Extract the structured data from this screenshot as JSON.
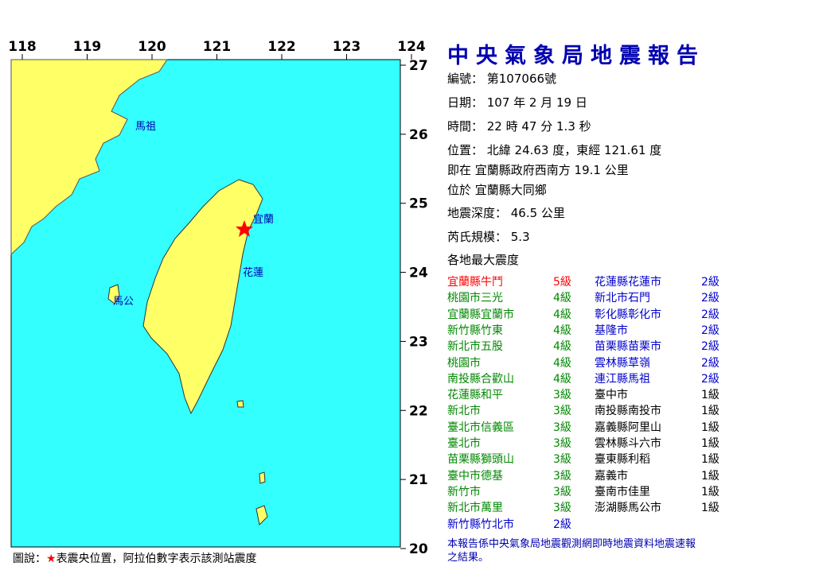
{
  "map": {
    "lon_ticks": [
      118,
      119,
      120,
      121,
      122,
      123,
      124
    ],
    "lat_ticks": [
      27,
      26,
      25,
      24,
      23,
      22,
      21,
      20
    ],
    "places": [
      "馬祖",
      "宜蘭",
      "花蓮",
      "馬公"
    ]
  },
  "report": {
    "title": "中央氣象局地震報告",
    "fields": [
      "編號： 第107066號",
      "日期： 107 年 2 月 19 日",
      "時間： 22 時 47 分 1.3 秒",
      "位置： 北緯 24.63 度，東經 121.61 度",
      "即在 宜蘭縣政府西南方 19.1 公里",
      "位於 宜蘭縣大同鄉",
      "地震深度： 46.5 公里",
      "芮氏規模： 5.3",
      "各地最大震度"
    ],
    "columns": [
      [
        {
          "name": "宜蘭縣牛鬥",
          "level": "5級",
          "color": "#ff0000"
        },
        {
          "name": "桃園市三光",
          "level": "4級",
          "color": "#008800"
        },
        {
          "name": "宜蘭縣宜蘭市",
          "level": "4級",
          "color": "#008800"
        },
        {
          "name": "新竹縣竹東",
          "level": "4級",
          "color": "#008800"
        },
        {
          "name": "新北市五股",
          "level": "4級",
          "color": "#008800"
        },
        {
          "name": "桃園市",
          "level": "4級",
          "color": "#008800"
        },
        {
          "name": "南投縣合歡山",
          "level": "4級",
          "color": "#008800"
        },
        {
          "name": "花蓮縣和平",
          "level": "3級",
          "color": "#008800"
        },
        {
          "name": "新北市",
          "level": "3級",
          "color": "#008800"
        },
        {
          "name": "臺北市信義區",
          "level": "3級",
          "color": "#008800"
        },
        {
          "name": "臺北市",
          "level": "3級",
          "color": "#008800"
        },
        {
          "name": "苗栗縣獅頭山",
          "level": "3級",
          "color": "#008800"
        },
        {
          "name": "臺中市德基",
          "level": "3級",
          "color": "#008800"
        },
        {
          "name": "新竹市",
          "level": "3級",
          "color": "#008800"
        },
        {
          "name": "新北市萬里",
          "level": "3級",
          "color": "#008800"
        },
        {
          "name": "新竹縣竹北市",
          "level": "2級",
          "color": "#0000cc"
        }
      ],
      [
        {
          "name": "花蓮縣花蓮市",
          "level": "2級",
          "color": "#0000cc"
        },
        {
          "name": "新北市石門",
          "level": "2級",
          "color": "#0000cc"
        },
        {
          "name": "彰化縣彰化市",
          "level": "2級",
          "color": "#0000cc"
        },
        {
          "name": "基隆市",
          "level": "2級",
          "color": "#0000cc"
        },
        {
          "name": "苗栗縣苗栗市",
          "level": "2級",
          "color": "#0000cc"
        },
        {
          "name": "雲林縣草嶺",
          "level": "2級",
          "color": "#0000cc"
        },
        {
          "name": "連江縣馬祖",
          "level": "2級",
          "color": "#0000cc"
        },
        {
          "name": "臺中市",
          "level": "1級",
          "color": "#000000"
        },
        {
          "name": "南投縣南投市",
          "level": "1級",
          "color": "#000000"
        },
        {
          "name": "嘉義縣阿里山",
          "level": "1級",
          "color": "#000000"
        },
        {
          "name": "雲林縣斗六市",
          "level": "1級",
          "color": "#000000"
        },
        {
          "name": "臺東縣利稻",
          "level": "1級",
          "color": "#000000"
        },
        {
          "name": "嘉義市",
          "level": "1級",
          "color": "#000000"
        },
        {
          "name": "臺南市佳里",
          "level": "1級",
          "color": "#000000"
        },
        {
          "name": "澎湖縣馬公市",
          "level": "1級",
          "color": "#000000"
        }
      ]
    ],
    "note": "本報告係中央氣象局地震觀測網即時地震資料地震速報之結果。"
  },
  "caption": {
    "label": "圖說：",
    "star": "★",
    "text": "表震央位置，阿拉伯數字表示該測站震度"
  }
}
